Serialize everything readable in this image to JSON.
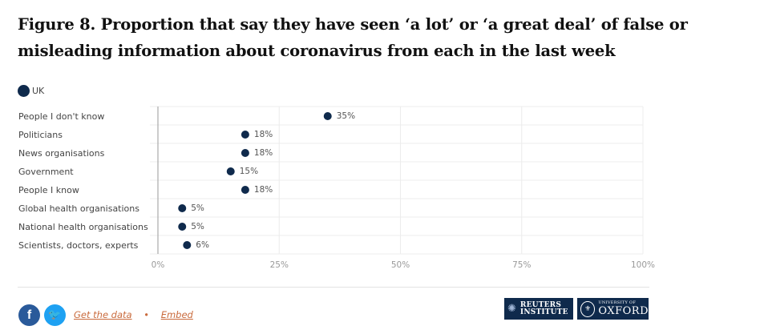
{
  "title": "Figure 8. Proportion that say they have seen ‘a lot’ or ‘a great deal’ of false or misleading information about coronavirus from each in the last week",
  "legend": {
    "label": "UK",
    "color": "#0f2a4c"
  },
  "chart_data": {
    "type": "scatter",
    "categories": [
      "People I don't know",
      "Politicians",
      "News organisations",
      "Government",
      "People I know",
      "Global health organisations",
      "National health organisations",
      "Scientists, doctors, experts"
    ],
    "series": [
      {
        "name": "UK",
        "values": [
          35,
          18,
          18,
          15,
          18,
          5,
          5,
          6
        ]
      }
    ],
    "value_labels": [
      "35%",
      "18%",
      "18%",
      "15%",
      "18%",
      "5%",
      "5%",
      "6%"
    ],
    "xlim": [
      0,
      100
    ],
    "xticks": [
      0,
      25,
      50,
      75,
      100
    ],
    "xtick_labels": [
      "0%",
      "25%",
      "50%",
      "75%",
      "100%"
    ],
    "grid": true,
    "legend_position": "top-left",
    "dot_color": "#0f2a4c"
  },
  "footer": {
    "facebook_label": "f",
    "twitter_label": "🐦",
    "get_data": "Get the data",
    "separator": "•",
    "embed": "Embed",
    "reuters_line1": "REUTERS",
    "reuters_line2": "INSTITUTE",
    "oxford_small": "UNIVERSITY OF",
    "oxford_big": "OXFORD"
  }
}
